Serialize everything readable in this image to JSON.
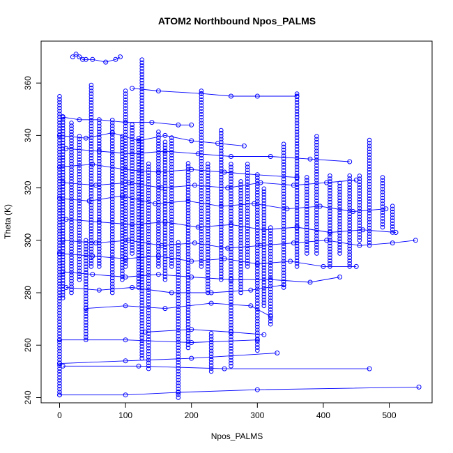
{
  "chart_data": {
    "type": "scatter",
    "title": "ATOM2 Northbound Npos_PALMS",
    "xlabel": "Npos_PALMS",
    "ylabel": "Theta (K)",
    "xlim": [
      -28,
      565
    ],
    "ylim": [
      238,
      376
    ],
    "x_ticks": [
      0,
      100,
      200,
      300,
      400,
      500
    ],
    "y_ticks": [
      240,
      260,
      280,
      300,
      320,
      340,
      360
    ],
    "grid": false,
    "legend": "none",
    "point_color": "#0000ff",
    "marker": "open-circle",
    "connected": true,
    "series": [
      {
        "x": [
          20,
          25,
          30,
          35,
          40,
          50,
          70,
          85,
          92
        ],
        "y": [
          370,
          371,
          370,
          369,
          369,
          369,
          368,
          369,
          370
        ]
      },
      {
        "x": [
          110,
          150,
          215,
          260,
          300,
          360
        ],
        "y": [
          358,
          357,
          356,
          355,
          355,
          355
        ]
      },
      {
        "x": [
          5,
          30,
          60,
          100,
          140,
          180,
          200
        ],
        "y": [
          347,
          346,
          346,
          345,
          345,
          344,
          344
        ]
      },
      {
        "x": [
          0,
          40,
          80,
          120,
          160,
          200,
          240,
          280
        ],
        "y": [
          340,
          339,
          341,
          338,
          340,
          338,
          337,
          336
        ]
      },
      {
        "x": [
          10,
          60,
          110,
          160,
          210,
          260,
          320,
          380,
          440
        ],
        "y": [
          335,
          334,
          333,
          334,
          333,
          332,
          332,
          331,
          330
        ]
      },
      {
        "x": [
          0,
          50,
          100,
          150,
          200,
          250,
          300,
          360
        ],
        "y": [
          328,
          329,
          327,
          326,
          327,
          326,
          325,
          324
        ]
      },
      {
        "x": [
          5,
          55,
          105,
          155,
          205,
          255,
          305,
          355,
          405,
          450
        ],
        "y": [
          322,
          321,
          322,
          320,
          321,
          320,
          322,
          321,
          322,
          323
        ]
      },
      {
        "x": [
          0,
          45,
          95,
          145,
          195,
          245,
          295,
          345,
          395,
          445,
          495
        ],
        "y": [
          316,
          315,
          317,
          314,
          315,
          313,
          314,
          312,
          313,
          311,
          312
        ]
      },
      {
        "x": [
          10,
          60,
          110,
          160,
          210,
          260,
          310,
          360,
          410,
          460,
          510
        ],
        "y": [
          308,
          307,
          306,
          307,
          305,
          306,
          304,
          305,
          303,
          304,
          303
        ]
      },
      {
        "x": [
          5,
          55,
          105,
          155,
          205,
          255,
          305,
          355,
          405,
          455,
          505,
          540
        ],
        "y": [
          300,
          299,
          300,
          298,
          299,
          297,
          298,
          299,
          300,
          298,
          299,
          300
        ]
      },
      {
        "x": [
          0,
          50,
          100,
          150,
          200,
          250,
          300,
          350,
          400,
          450
        ],
        "y": [
          295,
          294,
          293,
          294,
          292,
          293,
          291,
          292,
          290,
          290
        ]
      },
      {
        "x": [
          5,
          50,
          100,
          150,
          200,
          260,
          320,
          380,
          425
        ],
        "y": [
          288,
          287,
          286,
          287,
          286,
          285,
          285,
          284,
          286
        ]
      },
      {
        "x": [
          10,
          60,
          110,
          170,
          230,
          290,
          340
        ],
        "y": [
          282,
          281,
          282,
          280,
          280,
          281,
          283
        ]
      },
      {
        "x": [
          40,
          100,
          160,
          230,
          290,
          320
        ],
        "y": [
          274,
          275,
          274,
          276,
          275,
          271
        ]
      },
      {
        "x": [
          0,
          100,
          200,
          300
        ],
        "y": [
          262,
          262,
          261,
          262
        ]
      },
      {
        "x": [
          130,
          200,
          260,
          310
        ],
        "y": [
          265,
          266,
          265,
          264
        ]
      },
      {
        "x": [
          5,
          120,
          250,
          470
        ],
        "y": [
          252,
          252,
          251,
          251
        ]
      },
      {
        "x": [
          0,
          100,
          200,
          330
        ],
        "y": [
          253,
          254,
          255,
          257
        ]
      },
      {
        "x": [
          0,
          100,
          180,
          300,
          545
        ],
        "y": [
          241,
          241,
          242,
          243,
          244
        ]
      }
    ],
    "columns": [
      {
        "x": 0,
        "y0": 241,
        "y1": 356
      },
      {
        "x": 5,
        "y0": 278,
        "y1": 348
      },
      {
        "x": 18,
        "y0": 280,
        "y1": 345
      },
      {
        "x": 30,
        "y0": 285,
        "y1": 340
      },
      {
        "x": 40,
        "y0": 262,
        "y1": 300
      },
      {
        "x": 48,
        "y0": 290,
        "y1": 360
      },
      {
        "x": 60,
        "y0": 290,
        "y1": 345
      },
      {
        "x": 80,
        "y0": 280,
        "y1": 347
      },
      {
        "x": 95,
        "y0": 285,
        "y1": 340
      },
      {
        "x": 100,
        "y0": 290,
        "y1": 358
      },
      {
        "x": 110,
        "y0": 295,
        "y1": 345
      },
      {
        "x": 120,
        "y0": 282,
        "y1": 340
      },
      {
        "x": 125,
        "y0": 255,
        "y1": 370
      },
      {
        "x": 135,
        "y0": 251,
        "y1": 330
      },
      {
        "x": 150,
        "y0": 290,
        "y1": 342
      },
      {
        "x": 160,
        "y0": 285,
        "y1": 338
      },
      {
        "x": 170,
        "y0": 290,
        "y1": 340
      },
      {
        "x": 180,
        "y0": 240,
        "y1": 300
      },
      {
        "x": 195,
        "y0": 259,
        "y1": 330
      },
      {
        "x": 215,
        "y0": 290,
        "y1": 358
      },
      {
        "x": 225,
        "y0": 280,
        "y1": 330
      },
      {
        "x": 230,
        "y0": 250,
        "y1": 265
      },
      {
        "x": 245,
        "y0": 285,
        "y1": 342
      },
      {
        "x": 260,
        "y0": 252,
        "y1": 330
      },
      {
        "x": 275,
        "y0": 280,
        "y1": 323
      },
      {
        "x": 285,
        "y0": 290,
        "y1": 330
      },
      {
        "x": 300,
        "y0": 258,
        "y1": 325
      },
      {
        "x": 310,
        "y0": 275,
        "y1": 320
      },
      {
        "x": 320,
        "y0": 268,
        "y1": 305
      },
      {
        "x": 340,
        "y0": 282,
        "y1": 337
      },
      {
        "x": 360,
        "y0": 290,
        "y1": 356
      },
      {
        "x": 375,
        "y0": 295,
        "y1": 325
      },
      {
        "x": 390,
        "y0": 295,
        "y1": 340
      },
      {
        "x": 410,
        "y0": 290,
        "y1": 325
      },
      {
        "x": 425,
        "y0": 295,
        "y1": 322
      },
      {
        "x": 440,
        "y0": 290,
        "y1": 325
      },
      {
        "x": 455,
        "y0": 300,
        "y1": 325
      },
      {
        "x": 470,
        "y0": 298,
        "y1": 339
      },
      {
        "x": 490,
        "y0": 305,
        "y1": 324
      },
      {
        "x": 505,
        "y0": 303,
        "y1": 314
      }
    ]
  }
}
